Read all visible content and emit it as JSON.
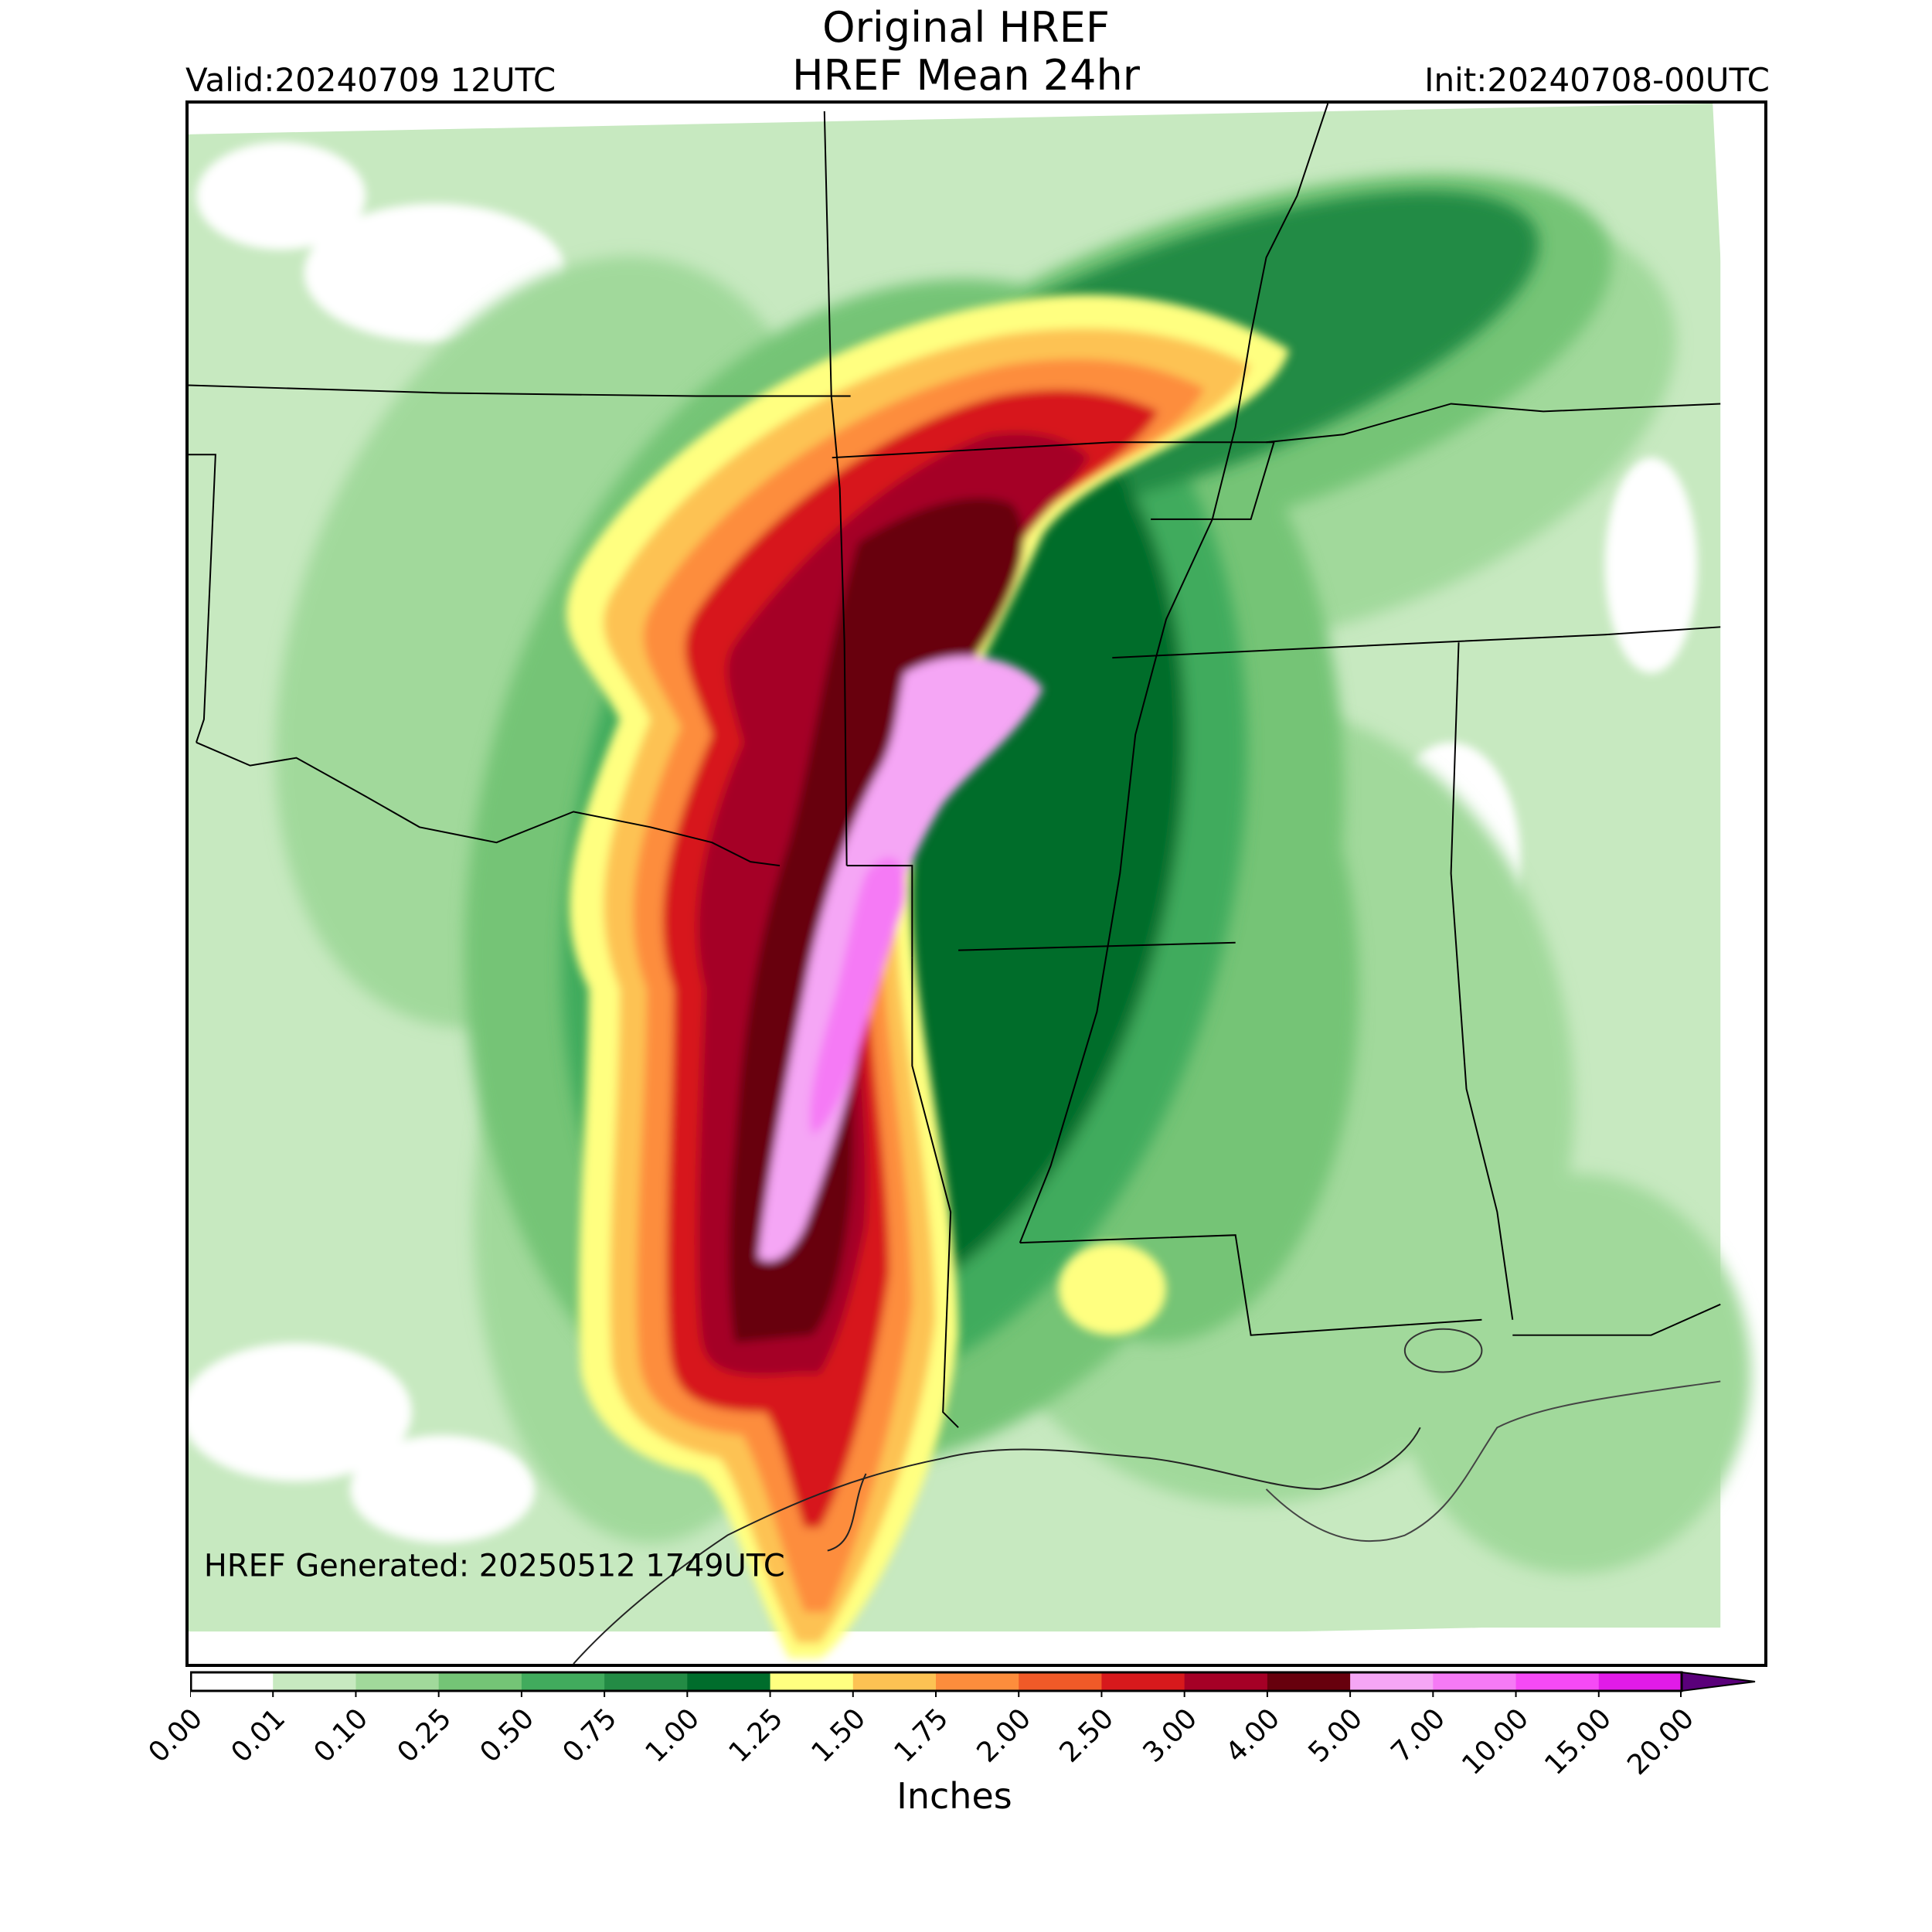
{
  "header": {
    "title_line1": "Original HREF",
    "title_line2": "HREF Mean 24hr",
    "valid": "Valid:20240709 12UTC",
    "init": "Init:20240708-00UTC"
  },
  "map": {
    "generated_text": "HREF Generated: 20250512 1749UTC"
  },
  "colorbar": {
    "label": "Inches",
    "ticks": [
      "0.00",
      "0.01",
      "0.10",
      "0.25",
      "0.50",
      "0.75",
      "1.00",
      "1.25",
      "1.50",
      "1.75",
      "2.00",
      "2.50",
      "3.00",
      "4.00",
      "5.00",
      "7.00",
      "10.00",
      "15.00",
      "20.00"
    ],
    "colors": [
      "#ffffff",
      "#c7e9c0",
      "#a1d99b",
      "#74c476",
      "#41ab5d",
      "#238b45",
      "#006d2c",
      "#ffff80",
      "#fdc253",
      "#fd8d3c",
      "#f05a28",
      "#d7191c",
      "#a50026",
      "#67000d",
      "#f5a6f5",
      "#f57af5",
      "#f54af5",
      "#e11be8",
      "#9a00c2"
    ],
    "extend_color": "#5a007a"
  },
  "legend_colors": {
    "very_light_green": "#c7e9c0",
    "light_green": "#a1d99b",
    "green": "#74c476",
    "mid_green": "#41ab5d",
    "dark_green": "#238b45",
    "darkest_green": "#006d2c",
    "yellow": "#ffff80",
    "orange": "#fdc253",
    "dark_orange": "#fd8d3c",
    "red": "#d7191c",
    "dark_red": "#a50026",
    "maroon": "#67000d",
    "pink": "#f5a6f5",
    "magenta": "#f57af5"
  }
}
